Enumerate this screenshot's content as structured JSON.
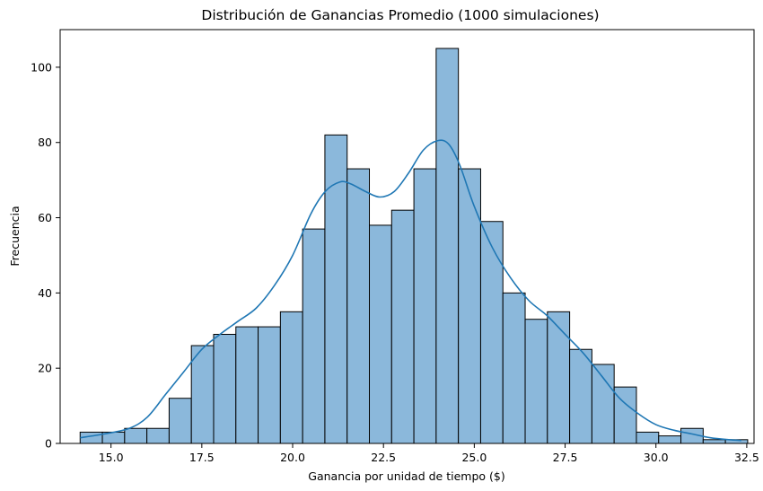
{
  "chart_data": {
    "type": "bar",
    "title": "Distribución de Ganancias Promedio (1000 simulaciones)",
    "xlabel": "Ganancia por unidad de tiempo ($)",
    "ylabel": "Frecuencia",
    "xlim": [
      13.6,
      32.7
    ],
    "ylim": [
      0,
      110
    ],
    "xticks": [
      15.0,
      17.5,
      20.0,
      22.5,
      25.0,
      27.5,
      30.0,
      32.5
    ],
    "xtick_labels": [
      "15.0",
      "17.5",
      "20.0",
      "22.5",
      "25.0",
      "27.5",
      "30.0",
      "32.5"
    ],
    "yticks": [
      0,
      20,
      40,
      60,
      80,
      100
    ],
    "ytick_labels": [
      "0",
      "20",
      "40",
      "60",
      "80",
      "100"
    ],
    "bins_start": 14.15,
    "bin_width": 0.6125,
    "values": [
      3,
      3,
      4,
      4,
      12,
      26,
      29,
      31,
      31,
      35,
      57,
      82,
      73,
      58,
      62,
      73,
      105,
      73,
      59,
      40,
      33,
      35,
      25,
      21,
      15,
      3,
      2,
      4,
      1,
      1
    ],
    "bar_color": "#8bb8db",
    "kde": {
      "color": "#1f77b4",
      "x": [
        14.15,
        14.8,
        15.5,
        16.0,
        16.5,
        17.0,
        17.5,
        18.0,
        18.5,
        19.0,
        19.5,
        20.0,
        20.5,
        20.9,
        21.3,
        21.6,
        22.0,
        22.4,
        22.8,
        23.2,
        23.6,
        24.0,
        24.3,
        24.6,
        25.0,
        25.5,
        26.0,
        26.5,
        27.0,
        27.5,
        28.0,
        28.5,
        29.0,
        29.5,
        30.0,
        30.5,
        31.0,
        31.5,
        32.0,
        32.35
      ],
      "y": [
        1.5,
        2.5,
        4,
        7,
        13,
        19,
        25,
        29,
        32.5,
        36,
        42,
        50,
        61,
        67,
        69.5,
        69,
        67,
        65.5,
        67,
        72,
        78,
        80.5,
        79.5,
        74,
        63,
        52,
        44,
        38,
        34,
        29,
        24,
        18,
        12,
        8,
        5,
        3.5,
        2.5,
        1.5,
        1.0,
        0.8
      ]
    }
  }
}
